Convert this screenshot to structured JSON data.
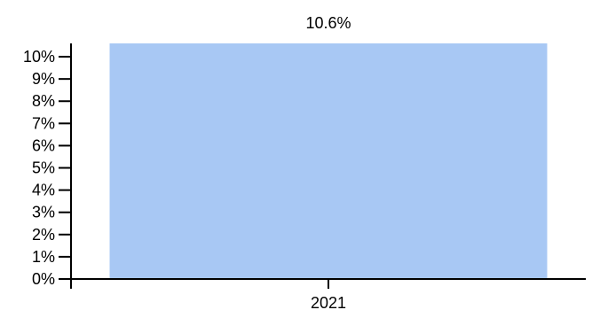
{
  "chart_data": {
    "type": "bar",
    "categories": [
      "2021"
    ],
    "values": [
      10.6
    ],
    "data_labels": [
      "10.6%"
    ],
    "y_ticks": [
      0,
      1,
      2,
      3,
      4,
      5,
      6,
      7,
      8,
      9,
      10
    ],
    "y_tick_labels": [
      "0%",
      "1%",
      "2%",
      "3%",
      "4%",
      "5%",
      "6%",
      "7%",
      "8%",
      "9%",
      "10%"
    ],
    "ylim": [
      0,
      10.6
    ],
    "grid": false,
    "legend": "none",
    "colors": {
      "bar": "#a8c8f4",
      "axis": "#000000"
    }
  }
}
